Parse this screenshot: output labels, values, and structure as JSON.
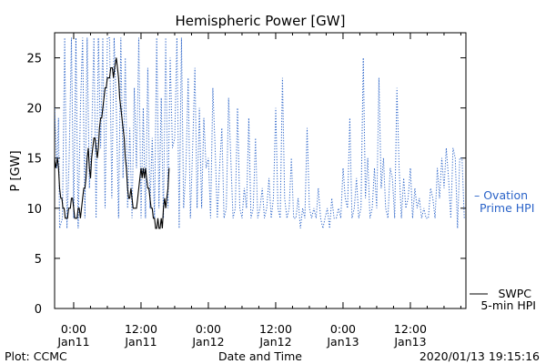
{
  "chart_data": {
    "type": "line",
    "title": "Hemispheric Power [GW]",
    "xlabel": "Date and Time",
    "ylabel": "P [GW]",
    "ylim": [
      0,
      27.5
    ],
    "y_ticks": [
      0,
      5,
      10,
      15,
      20,
      25
    ],
    "xlim": [
      -3.4,
      69.9
    ],
    "x_units": "hours since 2020/01/11 00:00 UT",
    "x_ticks": [
      {
        "x": 0,
        "time": "0:00",
        "date": "Jan11"
      },
      {
        "x": 12,
        "time": "12:00",
        "date": "Jan11"
      },
      {
        "x": 24,
        "time": "0:00",
        "date": "Jan12"
      },
      {
        "x": 36,
        "time": "12:00",
        "date": "Jan12"
      },
      {
        "x": 48,
        "time": "0:00",
        "date": "Jan13"
      },
      {
        "x": 60,
        "time": "12:00",
        "date": "Jan13"
      }
    ],
    "grid": false,
    "legend_position": "right",
    "series": [
      {
        "name": "SWPC 5-min HPI",
        "label_lines": [
          "SWPC",
          "5-min HPI"
        ],
        "color": "#000000",
        "style": "solid",
        "points": [
          [
            -3.4,
            15
          ],
          [
            -3.2,
            14
          ],
          [
            -2.9,
            15
          ],
          [
            -2.7,
            14
          ],
          [
            -2.5,
            12
          ],
          [
            -2.3,
            11
          ],
          [
            -2.1,
            11
          ],
          [
            -1.9,
            10
          ],
          [
            -1.7,
            10
          ],
          [
            -1.5,
            9
          ],
          [
            -1.1,
            9
          ],
          [
            -0.9,
            10
          ],
          [
            -0.6,
            10
          ],
          [
            -0.4,
            11
          ],
          [
            -0.2,
            11
          ],
          [
            0.0,
            10
          ],
          [
            0.2,
            9
          ],
          [
            0.6,
            9
          ],
          [
            0.8,
            10
          ],
          [
            1.0,
            10
          ],
          [
            1.2,
            9
          ],
          [
            1.4,
            10
          ],
          [
            1.6,
            11
          ],
          [
            1.8,
            12
          ],
          [
            2.0,
            12
          ],
          [
            2.2,
            13
          ],
          [
            2.4,
            15
          ],
          [
            2.6,
            16
          ],
          [
            2.8,
            14
          ],
          [
            3.0,
            13
          ],
          [
            3.2,
            15
          ],
          [
            3.4,
            16
          ],
          [
            3.6,
            17
          ],
          [
            3.8,
            17
          ],
          [
            4.0,
            16
          ],
          [
            4.2,
            15
          ],
          [
            4.4,
            16
          ],
          [
            4.6,
            18
          ],
          [
            4.8,
            19
          ],
          [
            5.0,
            19
          ],
          [
            5.2,
            20
          ],
          [
            5.4,
            21
          ],
          [
            5.6,
            22
          ],
          [
            5.8,
            22
          ],
          [
            6.0,
            23
          ],
          [
            6.4,
            23
          ],
          [
            6.6,
            24
          ],
          [
            6.9,
            24
          ],
          [
            7.1,
            23
          ],
          [
            7.3,
            24
          ],
          [
            7.6,
            25
          ],
          [
            7.8,
            24
          ],
          [
            8.0,
            23
          ],
          [
            8.2,
            21
          ],
          [
            8.4,
            20
          ],
          [
            8.6,
            19
          ],
          [
            8.8,
            18
          ],
          [
            9.0,
            17
          ],
          [
            9.2,
            15
          ],
          [
            9.4,
            14
          ],
          [
            9.6,
            12
          ],
          [
            9.8,
            11
          ],
          [
            10.0,
            11
          ],
          [
            10.2,
            12
          ],
          [
            10.4,
            11
          ],
          [
            10.6,
            10
          ],
          [
            11.2,
            10
          ],
          [
            11.4,
            11
          ],
          [
            11.6,
            12
          ],
          [
            11.8,
            13
          ],
          [
            12.0,
            14
          ],
          [
            12.2,
            13
          ],
          [
            12.4,
            14
          ],
          [
            12.6,
            13
          ],
          [
            12.8,
            14
          ],
          [
            13.0,
            13
          ],
          [
            13.2,
            12
          ],
          [
            13.4,
            12
          ],
          [
            13.6,
            11
          ],
          [
            13.8,
            10
          ],
          [
            14.0,
            10
          ],
          [
            14.2,
            9
          ],
          [
            14.4,
            9
          ],
          [
            14.6,
            8
          ],
          [
            14.8,
            8
          ],
          [
            15.0,
            9
          ],
          [
            15.2,
            8
          ],
          [
            15.4,
            8
          ],
          [
            15.6,
            9
          ],
          [
            15.8,
            8
          ],
          [
            16.0,
            10
          ],
          [
            16.2,
            11
          ],
          [
            16.4,
            10
          ],
          [
            16.6,
            11
          ],
          [
            16.8,
            12
          ],
          [
            17.0,
            14
          ]
        ]
      },
      {
        "name": "Ovation Prime HPI",
        "label_lines": [
          "– Ovation",
          "Prime HPI"
        ],
        "color": "#2a63c8",
        "style": "dotted",
        "points": [
          [
            -3.4,
            20
          ],
          [
            -3.0,
            14
          ],
          [
            -2.7,
            19
          ],
          [
            -2.5,
            8
          ],
          [
            -2.0,
            9
          ],
          [
            -1.6,
            27
          ],
          [
            -1.2,
            8
          ],
          [
            -0.8,
            15
          ],
          [
            -0.4,
            27
          ],
          [
            0.0,
            9
          ],
          [
            0.4,
            27
          ],
          [
            0.8,
            8
          ],
          [
            1.2,
            20
          ],
          [
            1.6,
            27
          ],
          [
            2.0,
            9
          ],
          [
            2.4,
            27
          ],
          [
            2.8,
            12
          ],
          [
            3.2,
            17
          ],
          [
            3.6,
            27
          ],
          [
            4.0,
            9
          ],
          [
            4.4,
            27
          ],
          [
            4.8,
            16
          ],
          [
            5.2,
            27
          ],
          [
            5.6,
            10
          ],
          [
            6.0,
            27
          ],
          [
            6.4,
            27
          ],
          [
            6.8,
            11
          ],
          [
            7.2,
            27
          ],
          [
            7.6,
            20
          ],
          [
            8.0,
            9
          ],
          [
            8.4,
            27
          ],
          [
            8.8,
            13
          ],
          [
            9.2,
            25
          ],
          [
            9.6,
            10
          ],
          [
            10.0,
            18
          ],
          [
            10.4,
            9
          ],
          [
            10.8,
            22
          ],
          [
            11.2,
            14
          ],
          [
            11.6,
            27
          ],
          [
            12.0,
            9
          ],
          [
            12.4,
            20
          ],
          [
            12.8,
            9
          ],
          [
            13.2,
            24
          ],
          [
            13.6,
            10
          ],
          [
            14.0,
            17
          ],
          [
            14.4,
            9
          ],
          [
            14.8,
            27
          ],
          [
            15.2,
            10
          ],
          [
            15.6,
            21
          ],
          [
            16.0,
            9
          ],
          [
            16.4,
            27
          ],
          [
            16.8,
            10
          ],
          [
            17.2,
            25
          ],
          [
            17.6,
            16
          ],
          [
            18.0,
            17
          ],
          [
            18.4,
            27
          ],
          [
            18.8,
            8
          ],
          [
            19.2,
            27
          ],
          [
            19.6,
            10
          ],
          [
            20.0,
            14
          ],
          [
            20.4,
            23
          ],
          [
            20.8,
            9
          ],
          [
            21.2,
            16
          ],
          [
            21.6,
            24
          ],
          [
            22.0,
            10
          ],
          [
            22.4,
            20
          ],
          [
            22.8,
            10
          ],
          [
            23.2,
            19
          ],
          [
            23.6,
            14
          ],
          [
            24.0,
            15
          ],
          [
            24.4,
            9
          ],
          [
            24.8,
            22
          ],
          [
            25.2,
            16
          ],
          [
            25.6,
            9
          ],
          [
            26.0,
            14
          ],
          [
            26.4,
            18
          ],
          [
            26.8,
            9
          ],
          [
            27.2,
            10
          ],
          [
            27.6,
            21
          ],
          [
            28.0,
            15
          ],
          [
            28.4,
            9
          ],
          [
            28.8,
            10
          ],
          [
            29.2,
            20
          ],
          [
            29.6,
            10
          ],
          [
            30.0,
            9
          ],
          [
            30.4,
            12
          ],
          [
            30.8,
            10
          ],
          [
            31.2,
            19
          ],
          [
            31.6,
            9
          ],
          [
            32.0,
            10
          ],
          [
            32.4,
            17
          ],
          [
            32.8,
            9
          ],
          [
            33.2,
            10
          ],
          [
            33.6,
            12
          ],
          [
            34.0,
            9
          ],
          [
            34.4,
            10
          ],
          [
            34.8,
            13
          ],
          [
            35.2,
            9
          ],
          [
            35.6,
            11
          ],
          [
            36.0,
            20
          ],
          [
            36.4,
            10
          ],
          [
            36.8,
            9
          ],
          [
            37.2,
            23
          ],
          [
            37.6,
            11
          ],
          [
            38.0,
            9
          ],
          [
            38.4,
            10
          ],
          [
            38.8,
            15
          ],
          [
            39.2,
            9
          ],
          [
            39.6,
            9
          ],
          [
            40.0,
            11
          ],
          [
            40.4,
            8
          ],
          [
            40.8,
            10
          ],
          [
            41.2,
            9
          ],
          [
            41.6,
            18
          ],
          [
            42.0,
            10
          ],
          [
            42.4,
            9
          ],
          [
            42.8,
            10
          ],
          [
            43.2,
            9
          ],
          [
            43.6,
            12
          ],
          [
            44.0,
            9
          ],
          [
            44.4,
            8
          ],
          [
            44.8,
            9
          ],
          [
            45.2,
            10
          ],
          [
            45.6,
            8
          ],
          [
            46.0,
            11
          ],
          [
            46.4,
            9
          ],
          [
            46.8,
            9
          ],
          [
            47.2,
            10
          ],
          [
            47.6,
            9
          ],
          [
            48.0,
            14
          ],
          [
            48.4,
            11
          ],
          [
            48.8,
            10
          ],
          [
            49.2,
            19
          ],
          [
            49.6,
            9
          ],
          [
            50.0,
            10
          ],
          [
            50.4,
            13
          ],
          [
            50.8,
            9
          ],
          [
            51.2,
            10
          ],
          [
            51.6,
            25
          ],
          [
            52.0,
            11
          ],
          [
            52.4,
            15
          ],
          [
            52.8,
            9
          ],
          [
            53.2,
            10
          ],
          [
            53.6,
            14
          ],
          [
            54.0,
            10
          ],
          [
            54.4,
            23
          ],
          [
            54.8,
            12
          ],
          [
            55.2,
            15
          ],
          [
            55.6,
            10
          ],
          [
            56.0,
            9
          ],
          [
            56.4,
            14
          ],
          [
            56.8,
            13
          ],
          [
            57.2,
            9
          ],
          [
            57.6,
            22
          ],
          [
            58.0,
            14
          ],
          [
            58.4,
            9
          ],
          [
            58.8,
            13
          ],
          [
            59.2,
            10
          ],
          [
            59.6,
            11
          ],
          [
            60.0,
            14
          ],
          [
            60.4,
            9
          ],
          [
            60.8,
            12
          ],
          [
            61.2,
            10
          ],
          [
            61.6,
            11
          ],
          [
            62.0,
            9
          ],
          [
            62.4,
            10
          ],
          [
            62.8,
            9
          ],
          [
            63.2,
            9
          ],
          [
            63.6,
            12
          ],
          [
            64.0,
            11
          ],
          [
            64.4,
            9
          ],
          [
            64.8,
            14
          ],
          [
            65.2,
            11
          ],
          [
            65.6,
            15
          ],
          [
            66.0,
            12
          ],
          [
            66.4,
            16
          ],
          [
            66.8,
            13
          ],
          [
            67.2,
            9
          ],
          [
            67.6,
            16
          ],
          [
            68.0,
            15
          ],
          [
            68.4,
            8
          ],
          [
            68.8,
            15
          ],
          [
            69.2,
            15
          ],
          [
            69.6,
            9
          ]
        ]
      }
    ]
  },
  "footer": {
    "left": "Plot: CCMC",
    "right": "2020/01/13 19:15:16"
  }
}
